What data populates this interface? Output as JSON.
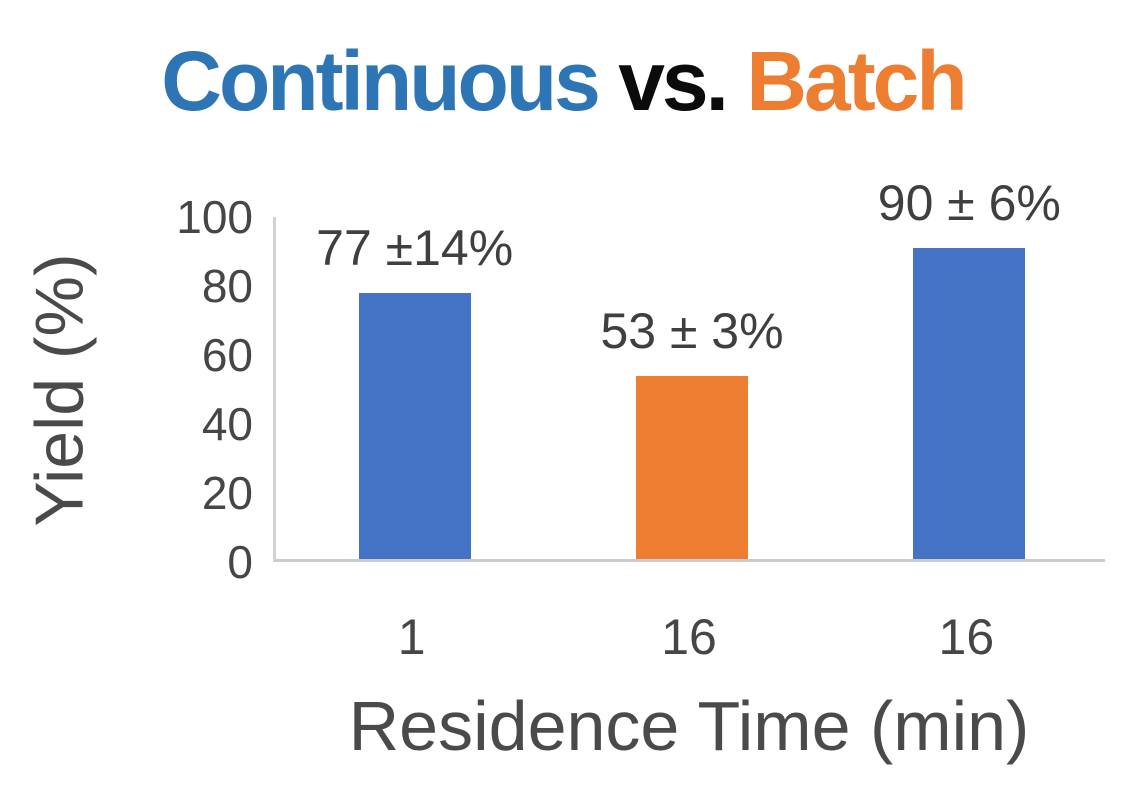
{
  "title": {
    "continuous": "Continuous",
    "vs": " vs. ",
    "batch": "Batch"
  },
  "colors": {
    "title_blue": "#2E75B6",
    "title_black": "#0B0B0B",
    "title_orange": "#ED7D31",
    "bar_blue": "#4472C4",
    "bar_orange": "#ED7D31",
    "axis_line": "#D2D2D2",
    "tick_text": "#464646",
    "axis_title_text": "#4A4A4A",
    "value_label_text": "#3F3F3F"
  },
  "chart_data": {
    "type": "bar",
    "title": "Continuous vs. Batch",
    "categories": [
      "1",
      "16",
      "16"
    ],
    "values": [
      77,
      53,
      90
    ],
    "errors": [
      14,
      3,
      6
    ],
    "value_labels": [
      "77 ±14%",
      "53 ± 3%",
      "90 ± 6%"
    ],
    "bar_colors": [
      "#4472C4",
      "#ED7D31",
      "#4472C4"
    ],
    "xlabel": "Residence Time (min)",
    "ylabel": "Yield (%)",
    "ylim": [
      0,
      100
    ],
    "yticks": [
      0,
      20,
      40,
      60,
      80,
      100
    ],
    "grid": false,
    "legend": false
  }
}
